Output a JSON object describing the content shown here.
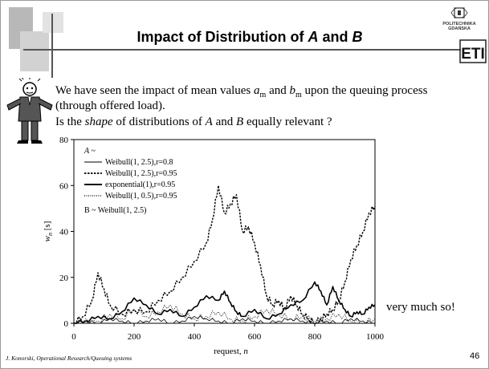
{
  "slide": {
    "title_prefix": "Impact of Distribution of ",
    "title_a": "A",
    "title_and": " and ",
    "title_b": "B",
    "logo_text_1": "POLITECHNIKA",
    "logo_text_2": "GDAŃSKA",
    "logo_eti": "ETI",
    "line1_a": "We have seen the impact of mean values ",
    "line1_am": "a",
    "line1_am_sub": "m",
    "line1_and": " and ",
    "line1_bm": "b",
    "line1_bm_sub": "m",
    "line1_b": " upon the queuing process",
    "line2": "(through offered load).",
    "line3_a": "Is the ",
    "line3_shape": "shape",
    "line3_b": " of distributions of ",
    "line3_A": "A",
    "line3_and": " and ",
    "line3_B": "B",
    "line3_c": " equally relevant ?",
    "annotation": "very much so!",
    "footer": "J. Konorski, Operational Research/Queuing systems",
    "page_number": "46"
  },
  "chart_data": {
    "type": "line",
    "xlabel": "request, n",
    "ylabel": "w",
    "ylabel_sub": "n",
    "ylabel_unit": "[s]",
    "xlim": [
      0,
      1000
    ],
    "ylim": [
      0,
      80
    ],
    "xticks": [
      "0",
      "200",
      "400",
      "600",
      "800",
      "1000"
    ],
    "yticks": [
      "0",
      "20",
      "40",
      "60",
      "80"
    ],
    "legend_header": "A ~",
    "legend_footer": "B ~ Weibull(1, 2.5)",
    "series": [
      {
        "name": "Weibull(1, 2.5),r=0.8",
        "style": "thin-solid",
        "x": [
          0,
          40,
          80,
          120,
          160,
          200,
          240,
          280,
          320,
          360,
          400,
          440,
          480,
          520,
          560,
          600,
          640,
          680,
          720,
          760,
          800,
          840,
          880,
          920,
          960,
          1000
        ],
        "y": [
          0,
          1,
          0,
          2,
          1,
          0,
          1,
          2,
          0,
          1,
          3,
          2,
          1,
          0,
          2,
          1,
          0,
          1,
          2,
          1,
          0,
          1,
          0,
          2,
          1,
          0
        ]
      },
      {
        "name": "Weibull(1, 2.5),r=0.95",
        "style": "thick-dashed",
        "x": [
          0,
          30,
          60,
          80,
          100,
          120,
          160,
          200,
          240,
          280,
          320,
          360,
          400,
          440,
          460,
          480,
          500,
          520,
          540,
          560,
          580,
          600,
          620,
          640,
          660,
          680,
          700,
          720,
          740,
          760,
          780,
          800,
          820,
          840,
          860,
          880,
          900,
          920,
          940,
          960,
          980,
          1000
        ],
        "y": [
          0,
          3,
          10,
          22,
          15,
          8,
          4,
          6,
          5,
          10,
          14,
          20,
          27,
          35,
          45,
          60,
          48,
          52,
          56,
          40,
          42,
          35,
          25,
          12,
          8,
          10,
          6,
          12,
          8,
          4,
          2,
          0,
          2,
          4,
          6,
          10,
          18,
          28,
          34,
          40,
          48,
          51
        ]
      },
      {
        "name": "exponential(1),r=0.95",
        "style": "thick-solid",
        "x": [
          0,
          40,
          80,
          120,
          160,
          200,
          240,
          280,
          320,
          360,
          400,
          440,
          480,
          500,
          520,
          540,
          560,
          600,
          640,
          680,
          720,
          760,
          800,
          820,
          840,
          860,
          880,
          900,
          920,
          940,
          960,
          980,
          1000
        ],
        "y": [
          0,
          1,
          3,
          2,
          5,
          11,
          8,
          4,
          6,
          3,
          7,
          12,
          10,
          14,
          9,
          5,
          3,
          6,
          2,
          4,
          8,
          10,
          18,
          14,
          8,
          16,
          10,
          6,
          3,
          5,
          4,
          7,
          8
        ]
      },
      {
        "name": "Weibull(1, 0.5),r=0.95",
        "style": "thin-dotted",
        "x": [
          0,
          40,
          80,
          120,
          160,
          200,
          240,
          280,
          320,
          360,
          400,
          440,
          480,
          520,
          560,
          600,
          640,
          680,
          720,
          760,
          800,
          840,
          880,
          920,
          960,
          1000
        ],
        "y": [
          0,
          2,
          1,
          4,
          2,
          6,
          3,
          5,
          8,
          4,
          2,
          3,
          5,
          2,
          1,
          3,
          6,
          4,
          2,
          3,
          1,
          2,
          4,
          1,
          0,
          2
        ]
      }
    ]
  }
}
